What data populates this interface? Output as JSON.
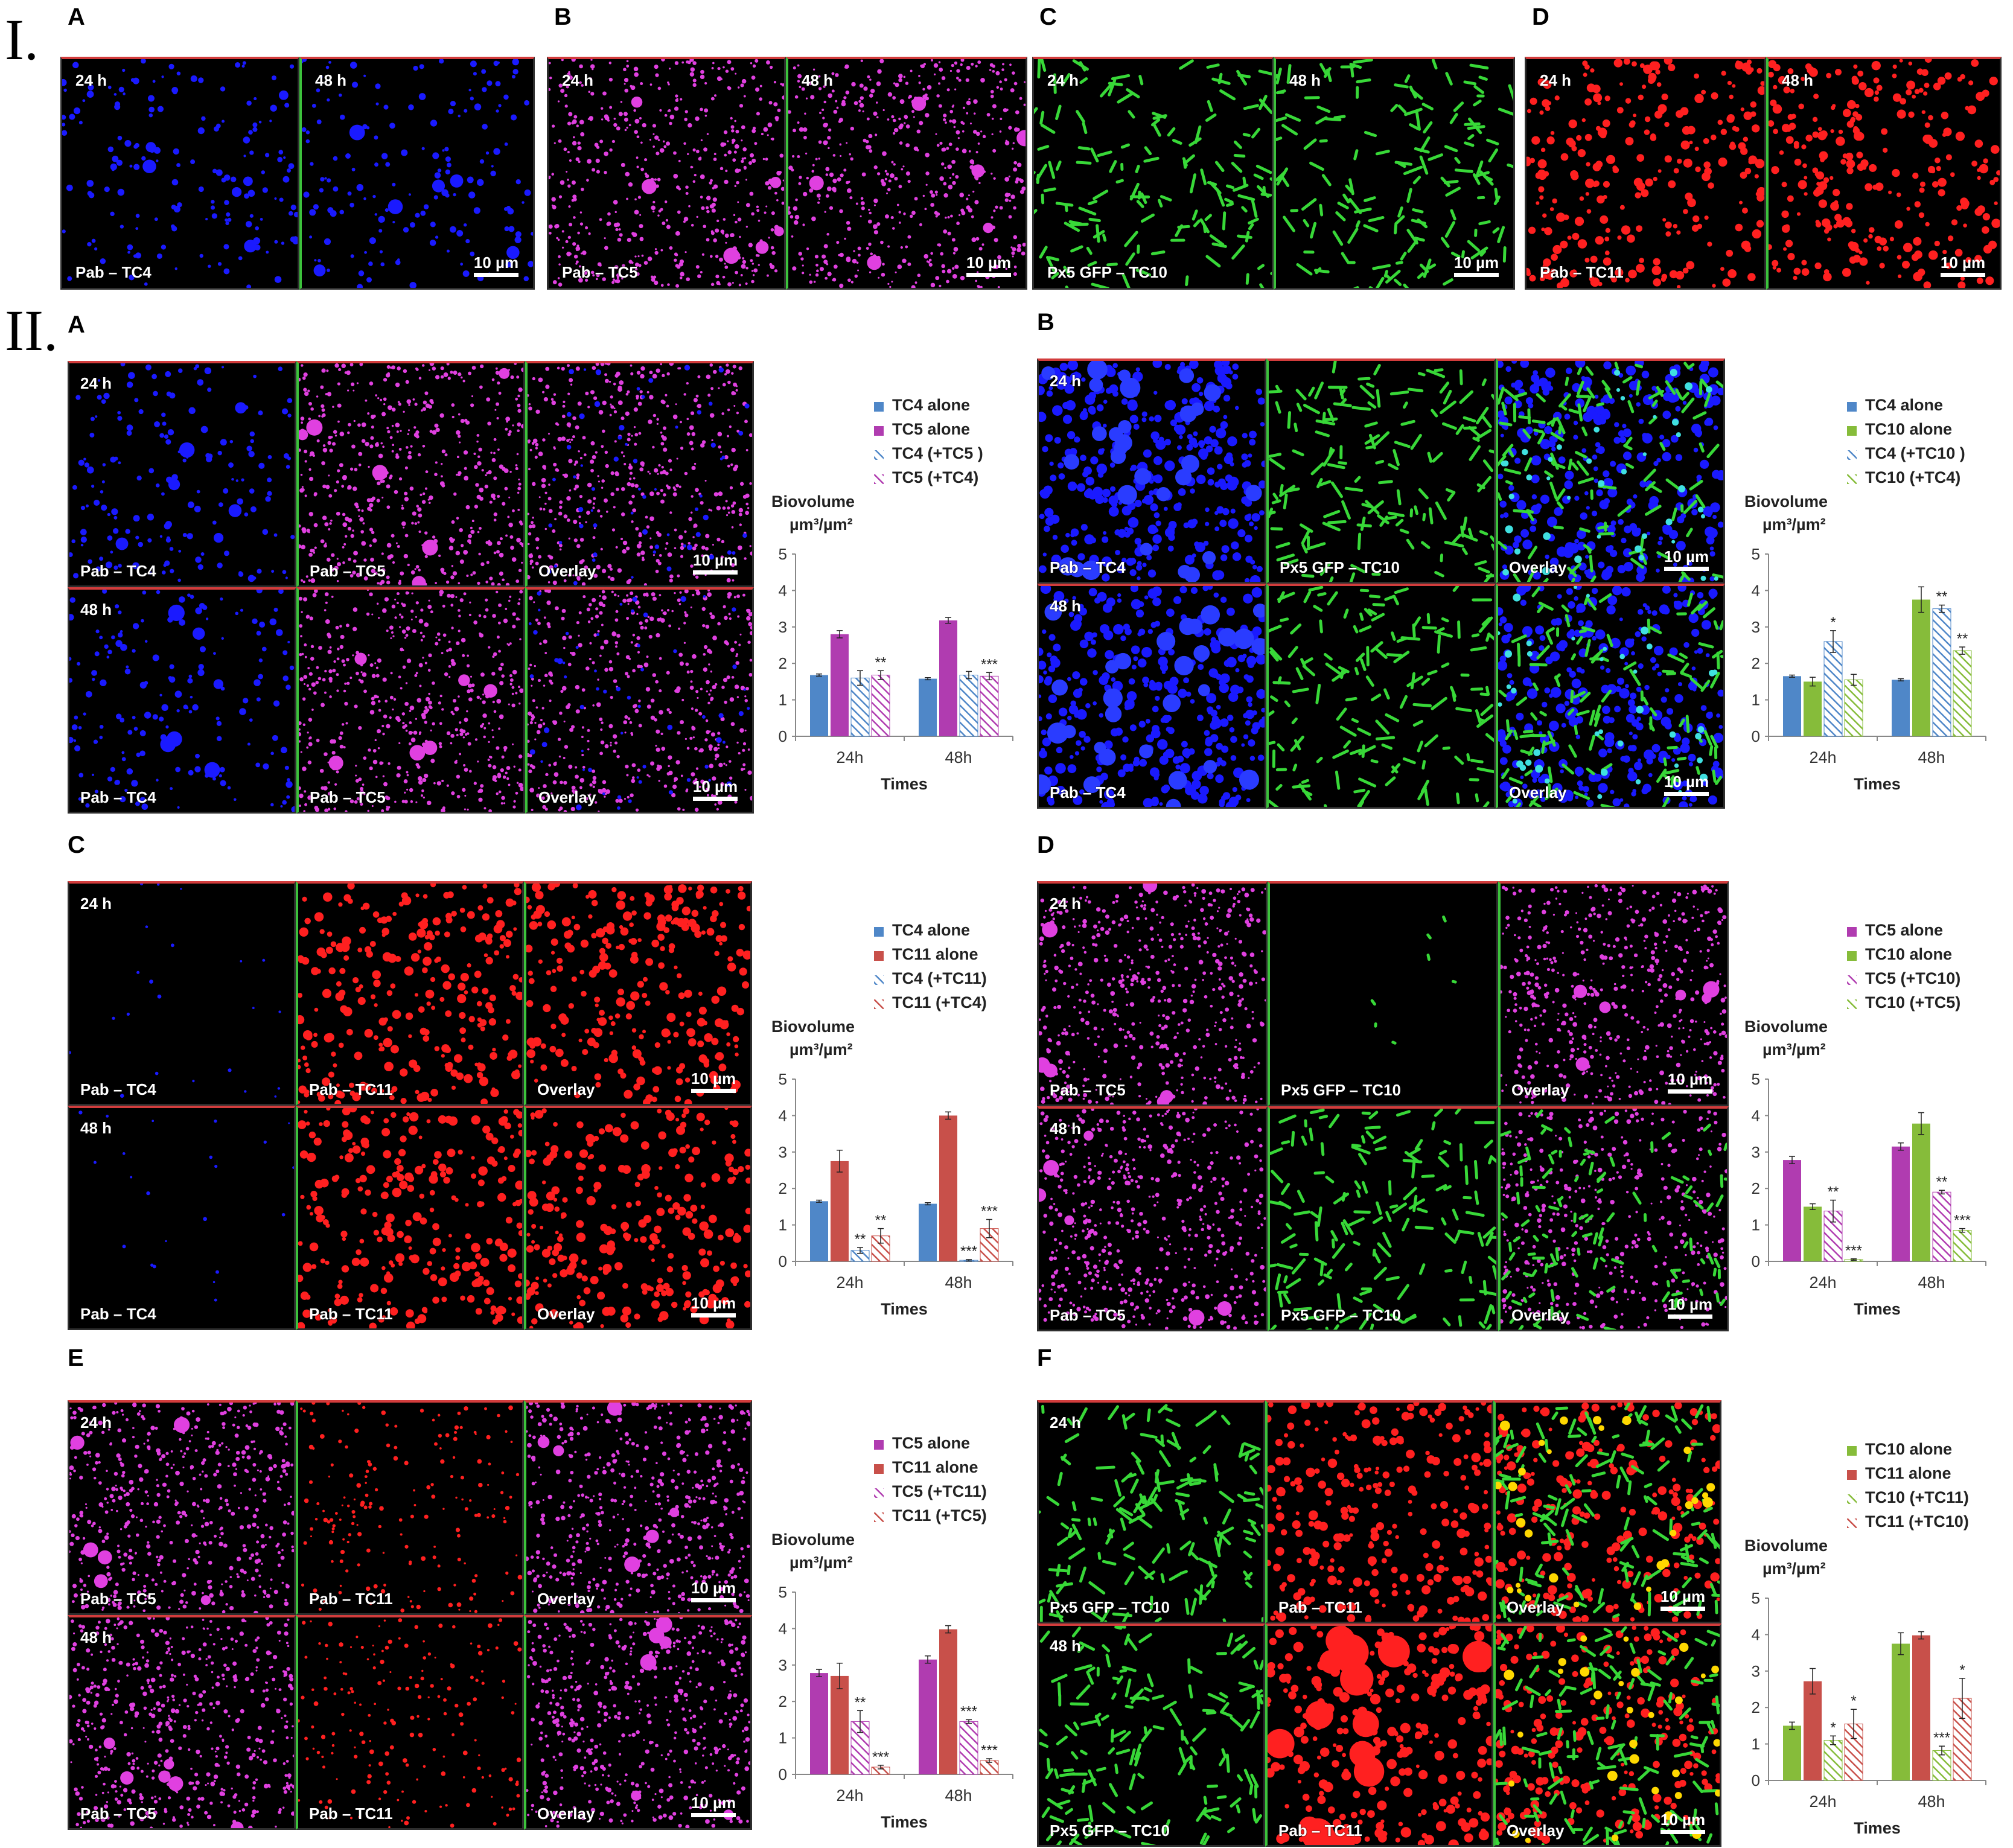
{
  "section_labels": {
    "I": "I.",
    "II": "II."
  },
  "colors": {
    "blue": "#1a1aff",
    "magenta": "#e040e0",
    "green": "#38d838",
    "red": "#ff2020",
    "bar_tc4": "#4f87c8",
    "bar_tc5": "#b03cb0",
    "bar_tc10": "#86bc3a",
    "bar_tc11": "#c8504a"
  },
  "common": {
    "h24": "24 h",
    "h48": "48 h",
    "scale": "10 µm",
    "overlay": "Overlay",
    "ylabel_1": "Biovolume",
    "ylabel_2": "µm³/µm²",
    "xlabel": "Times"
  },
  "panels_I": [
    {
      "letter": "A",
      "left": {
        "time": "24 h",
        "label": ""
      },
      "right": {
        "time": "48 h",
        "label": ""
      },
      "bottom_label": "Pab – TC4",
      "color": "blue"
    },
    {
      "letter": "B",
      "left": {
        "time": "24 h"
      },
      "right": {
        "time": "48 h"
      },
      "bottom_label": "Pab – TC5",
      "color": "magenta"
    },
    {
      "letter": "C",
      "left": {
        "time": "24 h"
      },
      "right": {
        "time": "48 h"
      },
      "bottom_label": "Px5 GFP – TC10",
      "color": "green"
    },
    {
      "letter": "D",
      "left": {
        "time": "24 h"
      },
      "right": {
        "time": "48 h"
      },
      "bottom_label": "Pab – TC11",
      "color": "red"
    }
  ],
  "panels_II": [
    {
      "letter": "A",
      "tiles": [
        {
          "row": 0,
          "col": 0,
          "color": "blue",
          "label": "Pab – TC4",
          "time": "24 h"
        },
        {
          "row": 0,
          "col": 1,
          "color": "magenta",
          "label": "Pab – TC5"
        },
        {
          "row": 0,
          "col": 2,
          "color": "overlayBM",
          "label": "Overlay",
          "scale": true
        },
        {
          "row": 1,
          "col": 0,
          "color": "blue",
          "label": "Pab – TC4",
          "time": "48 h"
        },
        {
          "row": 1,
          "col": 1,
          "color": "magenta",
          "label": "Pab – TC5"
        },
        {
          "row": 1,
          "col": 2,
          "color": "overlayBM",
          "label": "Overlay",
          "scale": true
        }
      ]
    },
    {
      "letter": "B",
      "tiles": [
        {
          "row": 0,
          "col": 0,
          "color": "blueDense",
          "label": "Pab – TC4",
          "time": "24 h"
        },
        {
          "row": 0,
          "col": 1,
          "color": "green",
          "label": "Px5 GFP – TC10"
        },
        {
          "row": 0,
          "col": 2,
          "color": "overlayBG",
          "label": "Overlay",
          "scale": true
        },
        {
          "row": 1,
          "col": 0,
          "color": "blueDense",
          "label": "Pab – TC4",
          "time": "48 h"
        },
        {
          "row": 1,
          "col": 1,
          "color": "green",
          "label": ""
        },
        {
          "row": 1,
          "col": 2,
          "color": "overlayBG",
          "label": "Overlay",
          "scale": true
        }
      ]
    },
    {
      "letter": "C",
      "tiles": [
        {
          "row": 0,
          "col": 0,
          "color": "blueSparse",
          "label": "Pab – TC4",
          "time": "24 h"
        },
        {
          "row": 0,
          "col": 1,
          "color": "red",
          "label": "Pab – TC11"
        },
        {
          "row": 0,
          "col": 2,
          "color": "red",
          "label": "Overlay",
          "scale": true
        },
        {
          "row": 1,
          "col": 0,
          "color": "blueSparse",
          "label": "Pab – TC4",
          "time": "48 h"
        },
        {
          "row": 1,
          "col": 1,
          "color": "red",
          "label": "Pab – TC11"
        },
        {
          "row": 1,
          "col": 2,
          "color": "red",
          "label": "Overlay",
          "scale": true
        }
      ]
    },
    {
      "letter": "D",
      "tiles": [
        {
          "row": 0,
          "col": 0,
          "color": "magenta",
          "label": "Pab – TC5",
          "time": "24 h"
        },
        {
          "row": 0,
          "col": 1,
          "color": "greenSparse",
          "label": "Px5 GFP – TC10"
        },
        {
          "row": 0,
          "col": 2,
          "color": "magenta",
          "label": "Overlay",
          "scale": true
        },
        {
          "row": 1,
          "col": 0,
          "color": "magenta",
          "label": "Pab – TC5",
          "time": "48 h"
        },
        {
          "row": 1,
          "col": 1,
          "color": "green",
          "label": "Px5 GFP – TC10"
        },
        {
          "row": 1,
          "col": 2,
          "color": "overlayMG",
          "label": "Overlay",
          "scale": true
        }
      ]
    },
    {
      "letter": "E",
      "tiles": [
        {
          "row": 0,
          "col": 0,
          "color": "magenta",
          "label": "Pab – TC5",
          "time": "24 h"
        },
        {
          "row": 0,
          "col": 1,
          "color": "redSparse",
          "label": "Pab – TC11"
        },
        {
          "row": 0,
          "col": 2,
          "color": "magenta",
          "label": "Overlay",
          "scale": true
        },
        {
          "row": 1,
          "col": 0,
          "color": "magenta",
          "label": "Pab – TC5",
          "time": "48 h"
        },
        {
          "row": 1,
          "col": 1,
          "color": "redSparse",
          "label": "Pab – TC11"
        },
        {
          "row": 1,
          "col": 2,
          "color": "magenta",
          "label": "Overlay",
          "scale": true
        }
      ]
    },
    {
      "letter": "F",
      "tiles": [
        {
          "row": 0,
          "col": 0,
          "color": "green",
          "label": "Px5 GFP – TC10",
          "time": "24 h"
        },
        {
          "row": 0,
          "col": 1,
          "color": "red",
          "label": "Pab – TC11"
        },
        {
          "row": 0,
          "col": 2,
          "color": "overlayGR",
          "label": "Overlay",
          "scale": true
        },
        {
          "row": 1,
          "col": 0,
          "color": "green",
          "label": "Px5 GFP – TC10",
          "time": "48 h"
        },
        {
          "row": 1,
          "col": 1,
          "color": "redBig",
          "label": "Pab – TC11"
        },
        {
          "row": 1,
          "col": 2,
          "color": "overlayGR",
          "label": "Overlay",
          "scale": true
        }
      ]
    }
  ],
  "chart_data": [
    {
      "panel": "II.A",
      "type": "bar",
      "categories": [
        "24h",
        "48h"
      ],
      "ylim": [
        0,
        5
      ],
      "xlabel": "Times",
      "ylabel": "Biovolume µm³/µm²",
      "series": [
        {
          "name": "TC4 alone",
          "color": "#4f87c8",
          "hatched": false,
          "values": [
            1.68,
            1.58
          ],
          "err": [
            0.03,
            0.03
          ],
          "sig": [
            "",
            ""
          ]
        },
        {
          "name": "TC5 alone",
          "color": "#b03cb0",
          "hatched": false,
          "values": [
            2.8,
            3.18
          ],
          "err": [
            0.1,
            0.08
          ],
          "sig": [
            "",
            ""
          ]
        },
        {
          "name": "TC4 (+TC5 )",
          "color": "#4f87c8",
          "hatched": true,
          "values": [
            1.6,
            1.68
          ],
          "err": [
            0.2,
            0.1
          ],
          "sig": [
            "",
            ""
          ]
        },
        {
          "name": "TC5 (+TC4)",
          "color": "#b03cb0",
          "hatched": true,
          "values": [
            1.68,
            1.65
          ],
          "err": [
            0.12,
            0.1
          ],
          "sig": [
            "**",
            "***"
          ]
        }
      ]
    },
    {
      "panel": "II.B",
      "type": "bar",
      "categories": [
        "24h",
        "48h"
      ],
      "ylim": [
        0,
        5
      ],
      "xlabel": "Times",
      "ylabel": "Biovolume µm³/µm²",
      "series": [
        {
          "name": "TC4 alone",
          "color": "#4f87c8",
          "hatched": false,
          "values": [
            1.65,
            1.55
          ],
          "err": [
            0.03,
            0.03
          ],
          "sig": [
            "",
            ""
          ]
        },
        {
          "name": "TC10 alone",
          "color": "#86bc3a",
          "hatched": false,
          "values": [
            1.5,
            3.75
          ],
          "err": [
            0.12,
            0.35
          ],
          "sig": [
            "",
            ""
          ]
        },
        {
          "name": "TC4 (+TC10 )",
          "color": "#4f87c8",
          "hatched": true,
          "values": [
            2.6,
            3.5
          ],
          "err": [
            0.3,
            0.1
          ],
          "sig": [
            "*",
            "**"
          ]
        },
        {
          "name": "TC10 (+TC4)",
          "color": "#86bc3a",
          "hatched": true,
          "values": [
            1.55,
            2.35
          ],
          "err": [
            0.15,
            0.1
          ],
          "sig": [
            "",
            "**"
          ]
        }
      ]
    },
    {
      "panel": "II.C",
      "type": "bar",
      "categories": [
        "24h",
        "48h"
      ],
      "ylim": [
        0,
        5
      ],
      "xlabel": "Times",
      "ylabel": "Biovolume µm³/µm²",
      "series": [
        {
          "name": "TC4 alone",
          "color": "#4f87c8",
          "hatched": false,
          "values": [
            1.65,
            1.58
          ],
          "err": [
            0.03,
            0.03
          ],
          "sig": [
            "",
            ""
          ]
        },
        {
          "name": "TC11 alone",
          "color": "#c8504a",
          "hatched": false,
          "values": [
            2.75,
            4.0
          ],
          "err": [
            0.3,
            0.1
          ],
          "sig": [
            "",
            ""
          ]
        },
        {
          "name": "TC4 (+TC11)",
          "color": "#4f87c8",
          "hatched": true,
          "values": [
            0.3,
            0.03
          ],
          "err": [
            0.08,
            0.02
          ],
          "sig": [
            "**",
            "***"
          ]
        },
        {
          "name": "TC11 (+TC4)",
          "color": "#c8504a",
          "hatched": true,
          "values": [
            0.7,
            0.9
          ],
          "err": [
            0.2,
            0.25
          ],
          "sig": [
            "**",
            "***"
          ]
        }
      ]
    },
    {
      "panel": "II.D",
      "type": "bar",
      "categories": [
        "24h",
        "48h"
      ],
      "ylim": [
        0,
        5
      ],
      "xlabel": "Times",
      "ylabel": "Biovolume µm³/µm²",
      "series": [
        {
          "name": "TC5 alone",
          "color": "#b03cb0",
          "hatched": false,
          "values": [
            2.78,
            3.15
          ],
          "err": [
            0.1,
            0.1
          ],
          "sig": [
            "",
            ""
          ]
        },
        {
          "name": "TC10 alone",
          "color": "#86bc3a",
          "hatched": false,
          "values": [
            1.5,
            3.78
          ],
          "err": [
            0.08,
            0.3
          ],
          "sig": [
            "",
            ""
          ]
        },
        {
          "name": "TC5 (+TC10)",
          "color": "#b03cb0",
          "hatched": true,
          "values": [
            1.38,
            1.9
          ],
          "err": [
            0.3,
            0.05
          ],
          "sig": [
            "**",
            "**"
          ]
        },
        {
          "name": "TC10 (+TC5)",
          "color": "#86bc3a",
          "hatched": true,
          "values": [
            0.05,
            0.85
          ],
          "err": [
            0.02,
            0.05
          ],
          "sig": [
            "***",
            "***"
          ]
        }
      ]
    },
    {
      "panel": "II.E",
      "type": "bar",
      "categories": [
        "24h",
        "48h"
      ],
      "ylim": [
        0,
        5
      ],
      "xlabel": "Times",
      "ylabel": "Biovolume µm³/µm²",
      "series": [
        {
          "name": "TC5 alone",
          "color": "#b03cb0",
          "hatched": false,
          "values": [
            2.78,
            3.15
          ],
          "err": [
            0.1,
            0.1
          ],
          "sig": [
            "",
            ""
          ]
        },
        {
          "name": "TC11 alone",
          "color": "#c8504a",
          "hatched": false,
          "values": [
            2.7,
            3.98
          ],
          "err": [
            0.35,
            0.1
          ],
          "sig": [
            "",
            ""
          ]
        },
        {
          "name": "TC5 (+TC11)",
          "color": "#b03cb0",
          "hatched": true,
          "values": [
            1.45,
            1.45
          ],
          "err": [
            0.3,
            0.05
          ],
          "sig": [
            "**",
            "***"
          ]
        },
        {
          "name": "TC11 (+TC5)",
          "color": "#c8504a",
          "hatched": true,
          "values": [
            0.2,
            0.38
          ],
          "err": [
            0.05,
            0.05
          ],
          "sig": [
            "***",
            "***"
          ]
        }
      ]
    },
    {
      "panel": "II.F",
      "type": "bar",
      "categories": [
        "24h",
        "48h"
      ],
      "ylim": [
        0,
        5
      ],
      "xlabel": "Times",
      "ylabel": "Biovolume µm³/µm²",
      "series": [
        {
          "name": "TC10 alone",
          "color": "#86bc3a",
          "hatched": false,
          "values": [
            1.5,
            3.75
          ],
          "err": [
            0.1,
            0.3
          ],
          "sig": [
            "",
            ""
          ]
        },
        {
          "name": "TC11 alone",
          "color": "#c8504a",
          "hatched": false,
          "values": [
            2.72,
            3.98
          ],
          "err": [
            0.35,
            0.1
          ],
          "sig": [
            "",
            ""
          ]
        },
        {
          "name": "TC10 (+TC11)",
          "color": "#86bc3a",
          "hatched": true,
          "values": [
            1.1,
            0.82
          ],
          "err": [
            0.12,
            0.12
          ],
          "sig": [
            "*",
            "***"
          ]
        },
        {
          "name": "TC11 (+TC10)",
          "color": "#c8504a",
          "hatched": true,
          "values": [
            1.55,
            2.25
          ],
          "err": [
            0.4,
            0.55
          ],
          "sig": [
            "*",
            "*"
          ]
        }
      ]
    }
  ]
}
